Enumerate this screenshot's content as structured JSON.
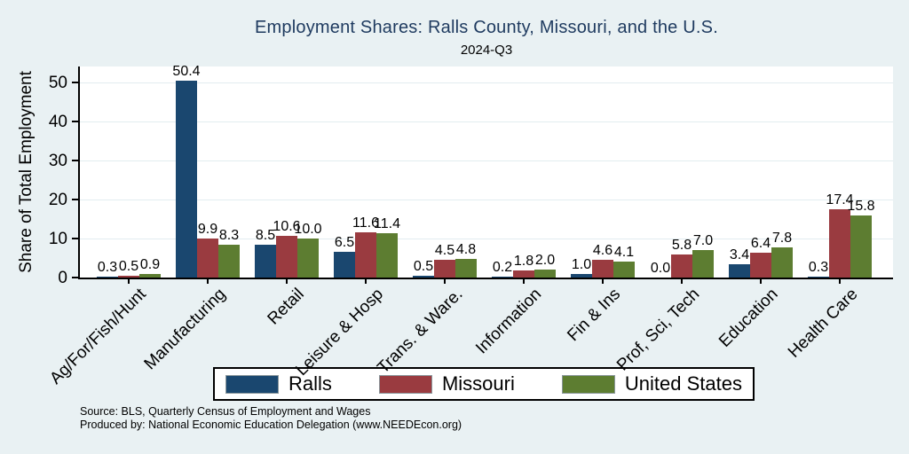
{
  "title": "Employment Shares: Ralls County, Missouri, and the U.S.",
  "subtitle": "2024-Q3",
  "source": {
    "line1": "Source: BLS, Quarterly Census of Employment and Wages",
    "line2": "Produced by: National Economic Education Delegation (www.NEEDEcon.org)"
  },
  "colors": {
    "background": "#e9f1f3",
    "plot_background": "#ffffff",
    "gridline": "#e2edf0",
    "axis": "#000000",
    "title_text": "#1e3a5f",
    "ralls": "#1a476f",
    "missouri": "#9a3b40",
    "united_states": "#5d7d31"
  },
  "chart_data": {
    "type": "bar",
    "title": "Employment Shares: Ralls County, Missouri, and the U.S.",
    "subtitle": "2024-Q3",
    "xlabel": "",
    "ylabel": "Share of Total Employment",
    "ylim": [
      0,
      54
    ],
    "yticks": [
      0,
      10,
      20,
      30,
      40,
      50
    ],
    "grid": true,
    "legend_position": "bottom",
    "bar_value_labels": true,
    "categories": [
      "Ag/For/Fish/Hunt",
      "Manufacturing",
      "Retail",
      "Leisure & Hosp",
      "Trans. & Ware.",
      "Information",
      "Fin & Ins",
      "Prof, Sci, Tech",
      "Education",
      "Health Care"
    ],
    "series": [
      {
        "name": "Ralls",
        "color": "#1a476f",
        "values": [
          0.3,
          50.4,
          8.5,
          6.5,
          0.5,
          0.2,
          1.0,
          0.0,
          3.4,
          0.3
        ]
      },
      {
        "name": "Missouri",
        "color": "#9a3b40",
        "values": [
          0.5,
          9.9,
          10.6,
          11.6,
          4.5,
          1.8,
          4.6,
          5.8,
          6.4,
          17.4
        ]
      },
      {
        "name": "United States",
        "color": "#5d7d31",
        "values": [
          0.9,
          8.3,
          10.0,
          11.4,
          4.8,
          2.0,
          4.1,
          7.0,
          7.8,
          15.8
        ]
      }
    ]
  }
}
